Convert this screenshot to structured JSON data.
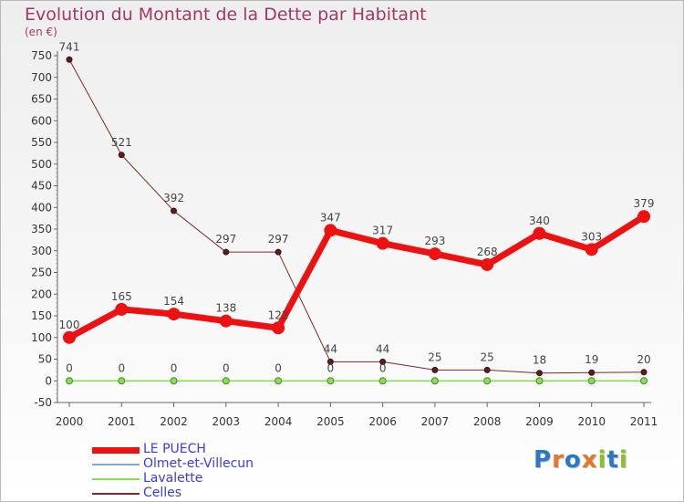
{
  "title": "Evolution du Montant de la Dette par Habitant",
  "unit": "(en €)",
  "logo": {
    "text": "Proxiti",
    "letters": [
      {
        "ch": "P",
        "color": "#2a79c8"
      },
      {
        "ch": "r",
        "color": "#e8742a"
      },
      {
        "ch": "o",
        "color": "#2a79c8"
      },
      {
        "ch": "x",
        "color": "#e8742a"
      },
      {
        "ch": "i",
        "color": "#8cbf2e"
      },
      {
        "ch": "t",
        "color": "#2a79c8"
      },
      {
        "ch": "i",
        "color": "#8cbf2e"
      }
    ]
  },
  "chart_data": {
    "type": "line",
    "title": "Evolution du Montant de la Dette par Habitant",
    "ylabel": "(en €)",
    "xlabel": "",
    "ylim": [
      -50,
      750
    ],
    "yticks": [
      -50,
      0,
      50,
      100,
      150,
      200,
      250,
      300,
      350,
      400,
      450,
      500,
      550,
      600,
      650,
      700,
      750
    ],
    "categories": [
      "2000",
      "2001",
      "2002",
      "2003",
      "2004",
      "2005",
      "2006",
      "2007",
      "2008",
      "2009",
      "2010",
      "2011"
    ],
    "grid": false,
    "legend_position": "bottom-left",
    "series": [
      {
        "name": "LE PUECH",
        "color": "#ee1111",
        "values": [
          100,
          165,
          154,
          138,
          122,
          347,
          317,
          293,
          268,
          340,
          303,
          379
        ],
        "labels": [
          "100",
          "165",
          "154",
          "138",
          "122",
          "347",
          "317",
          "293",
          "268",
          "340",
          "303",
          "379"
        ]
      },
      {
        "name": "Olmet-et-Villecun",
        "color": "#7fa9d6",
        "values": [
          0,
          0,
          0,
          0,
          0,
          0,
          0,
          0,
          0,
          0,
          0,
          0
        ]
      },
      {
        "name": "Lavalette",
        "color": "#88dd55",
        "values": [
          0,
          0,
          0,
          0,
          0,
          0,
          0,
          0,
          0,
          0,
          0,
          0
        ],
        "labels": [
          "0",
          "0",
          "0",
          "0",
          "0",
          "0",
          "0",
          "",
          "",
          "",
          "",
          ""
        ]
      },
      {
        "name": "Celles",
        "color": "#7a2a2a",
        "values": [
          741,
          521,
          392,
          297,
          297,
          44,
          44,
          25,
          25,
          18,
          19,
          20
        ],
        "labels": [
          "741",
          "521",
          "392",
          "297",
          "297",
          "44",
          "44",
          "25",
          "25",
          "18",
          "19",
          "20"
        ]
      }
    ]
  }
}
